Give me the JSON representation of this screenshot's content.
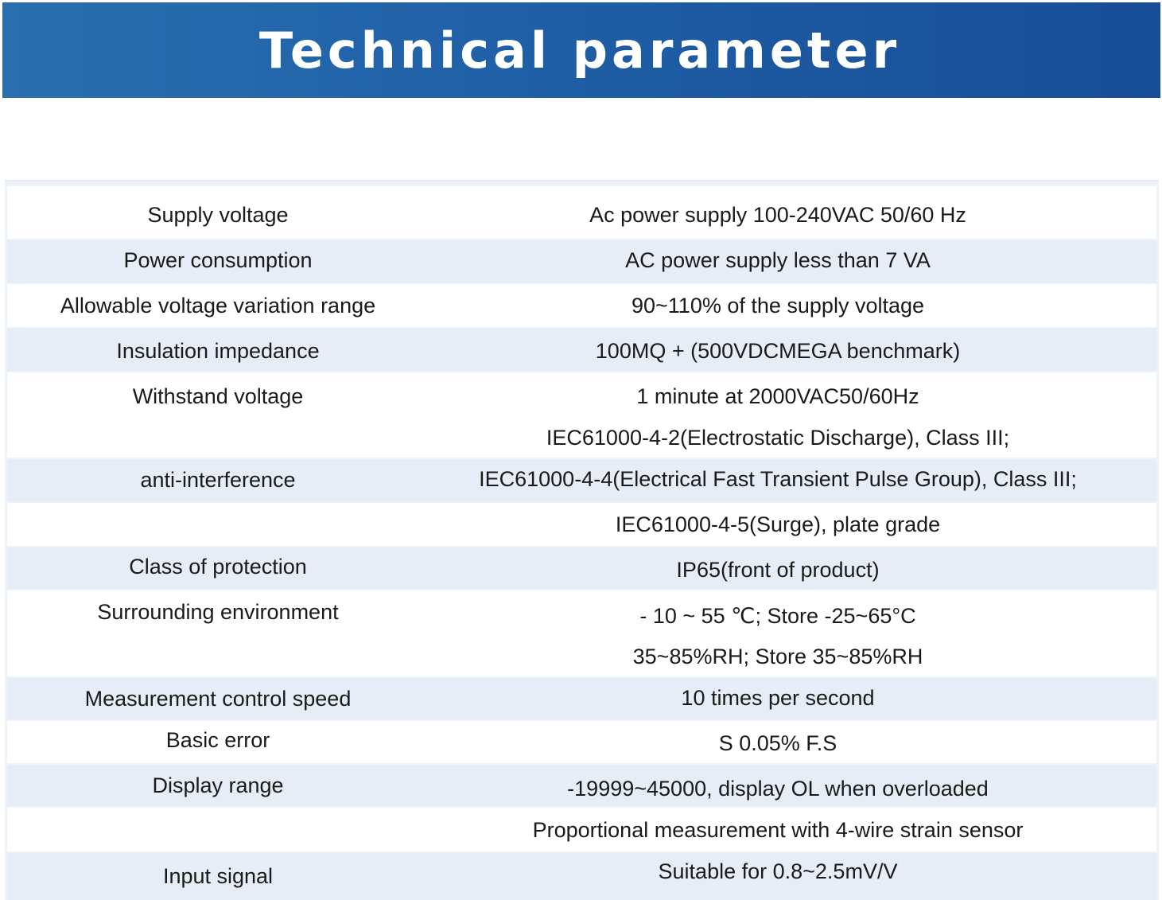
{
  "header": {
    "title": "Technical parameter"
  },
  "table": {
    "rows": [
      {
        "param": "Supply voltage",
        "values": [
          "Ac power supply 100-240VAC 50/60 Hz"
        ]
      },
      {
        "param": "Power consumption",
        "values": [
          "AC power supply less than 7 VA"
        ]
      },
      {
        "param": "Allowable voltage variation range",
        "values": [
          "90~110% of the supply voltage"
        ]
      },
      {
        "param": "Insulation impedance",
        "values": [
          "100MQ + (500VDCMEGA benchmark)"
        ]
      },
      {
        "param": "Withstand voltage",
        "values": [
          "1 minute at 2000VAC50/60Hz"
        ]
      },
      {
        "param": "anti-interference",
        "values": [
          "IEC61000-4-2(Electrostatic Discharge), Class III;",
          "IEC61000-4-4(Electrical Fast Transient Pulse Group), Class III;",
          "IEC61000-4-5(Surge), plate grade"
        ]
      },
      {
        "param": "Class of protection",
        "values": [
          "IP65(front of product)"
        ]
      },
      {
        "param": "Surrounding environment",
        "values": [
          "- 10 ~ 55 ℃; Store -25~65°C",
          "35~85%RH; Store 35~85%RH"
        ]
      },
      {
        "param": "Measurement control speed",
        "values": [
          "10 times per second"
        ]
      },
      {
        "param": "Basic error",
        "values": [
          "S 0.05% F.S"
        ]
      },
      {
        "param": "Display range",
        "values": [
          "-19999~45000, display OL when overloaded"
        ]
      },
      {
        "param": "Input signal",
        "values": [
          "Proportional measurement with 4-wire strain sensor",
          "Suitable for 0.8~2.5mV/V"
        ]
      }
    ]
  }
}
